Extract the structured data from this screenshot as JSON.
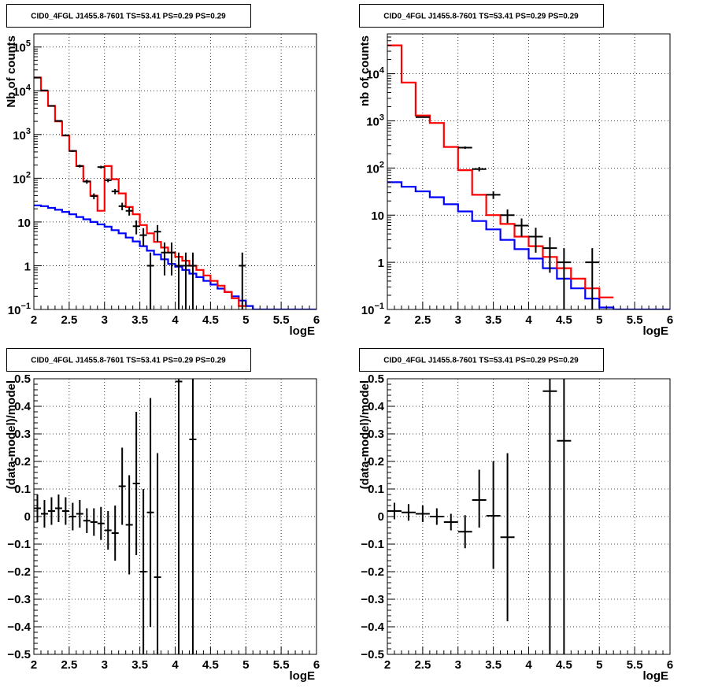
{
  "chart_data": [
    {
      "type": "line",
      "title": "CID0_4FGL J1455.8-7601 TS=53.41 PS=0.29 PS=0.29",
      "xlabel": "logE",
      "ylabel": "Nb of counts",
      "ylog": true,
      "xlim": [
        2,
        6
      ],
      "ylim": [
        0.1,
        200000
      ],
      "xticks": [
        "2",
        "2.5",
        "3",
        "3.5",
        "4",
        "4.5",
        "5",
        "5.5",
        "6"
      ],
      "yticks": [
        {
          "value": 0.1,
          "base": "10",
          "exp": "−1"
        },
        {
          "value": 1,
          "base": "1",
          "exp": ""
        },
        {
          "value": 10,
          "base": "10",
          "exp": ""
        },
        {
          "value": 100,
          "base": "10",
          "exp": "2"
        },
        {
          "value": 1000,
          "base": "10",
          "exp": "3"
        },
        {
          "value": 10000,
          "base": "10",
          "exp": "4"
        },
        {
          "value": 100000,
          "base": "10",
          "exp": "5"
        }
      ],
      "grid": true,
      "series": [
        {
          "color": "#0000ff",
          "style": "step",
          "edges": [
            2.0,
            2.1,
            2.2,
            2.3,
            2.4,
            2.5,
            2.6,
            2.7,
            2.8,
            2.9,
            3.0,
            3.1,
            3.2,
            3.3,
            3.4,
            3.5,
            3.6,
            3.7,
            3.8,
            3.9,
            4.0,
            4.1,
            4.2,
            4.3,
            4.4,
            4.5,
            4.6,
            4.7,
            4.8,
            4.9,
            5.0,
            5.1,
            5.2,
            5.3,
            5.4,
            5.5,
            5.6,
            5.7,
            5.8,
            5.9,
            6.0
          ],
          "values": [
            24,
            23,
            21,
            19,
            17,
            15,
            13,
            11.5,
            10,
            8.8,
            7.8,
            6.5,
            5.5,
            4.4,
            3.6,
            2.8,
            2.2,
            1.8,
            1.4,
            1.1,
            0.95,
            0.8,
            0.66,
            0.55,
            0.45,
            0.37,
            0.3,
            0.25,
            0.2,
            0.16,
            0.12,
            0.1,
            0.1,
            0.1,
            0.1,
            0.1,
            0.1,
            0.1,
            0.1,
            0.1
          ]
        },
        {
          "color": "#ff0000",
          "style": "step",
          "edges": [
            2.0,
            2.1,
            2.2,
            2.3,
            2.4,
            2.5,
            2.6,
            2.7,
            2.8,
            2.9,
            3.0,
            3.1,
            3.2,
            3.3,
            3.4,
            3.5,
            3.6,
            3.7,
            3.8,
            3.9,
            4.0,
            4.1,
            4.2,
            4.3,
            4.4,
            4.5,
            4.6,
            4.7,
            4.8,
            4.9,
            5.0
          ],
          "values": [
            20000,
            10000,
            4500,
            2000,
            950,
            420,
            190,
            85,
            40,
            18,
            190,
            95,
            45,
            22,
            15,
            8.5,
            5.5,
            3.5,
            2.6,
            2.0,
            1.6,
            1.3,
            1.0,
            0.8,
            0.6,
            0.45,
            0.35,
            0.25,
            0.18,
            0.12
          ]
        },
        {
          "color": "#000000",
          "style": "points",
          "points": [
            {
              "x": 2.05,
              "xerr": 0.05,
              "y": 20000,
              "lo": 19800,
              "hi": 20200
            },
            {
              "x": 2.15,
              "xerr": 0.05,
              "y": 10200,
              "lo": 10100,
              "hi": 10300
            },
            {
              "x": 2.25,
              "xerr": 0.05,
              "y": 4500,
              "lo": 4430,
              "hi": 4570
            },
            {
              "x": 2.35,
              "xerr": 0.05,
              "y": 2050,
              "lo": 2000,
              "hi": 2100
            },
            {
              "x": 2.45,
              "xerr": 0.05,
              "y": 960,
              "lo": 930,
              "hi": 990
            },
            {
              "x": 2.55,
              "xerr": 0.05,
              "y": 420,
              "lo": 400,
              "hi": 440
            },
            {
              "x": 2.65,
              "xerr": 0.05,
              "y": 190,
              "lo": 176,
              "hi": 204
            },
            {
              "x": 2.75,
              "xerr": 0.05,
              "y": 84,
              "lo": 75,
              "hi": 93
            },
            {
              "x": 2.85,
              "xerr": 0.05,
              "y": 39,
              "lo": 33,
              "hi": 45
            },
            {
              "x": 2.95,
              "xerr": 0.05,
              "y": 180,
              "lo": 167,
              "hi": 193
            },
            {
              "x": 3.05,
              "xerr": 0.05,
              "y": 90,
              "lo": 81,
              "hi": 99
            },
            {
              "x": 3.15,
              "xerr": 0.05,
              "y": 50,
              "lo": 43,
              "hi": 57
            },
            {
              "x": 3.25,
              "xerr": 0.05,
              "y": 23,
              "lo": 18.5,
              "hi": 27.5
            },
            {
              "x": 3.35,
              "xerr": 0.05,
              "y": 18,
              "lo": 14,
              "hi": 22
            },
            {
              "x": 3.45,
              "xerr": 0.05,
              "y": 8,
              "lo": 5.2,
              "hi": 10.8
            },
            {
              "x": 3.55,
              "xerr": 0.05,
              "y": 5,
              "lo": 2.8,
              "hi": 7.2
            },
            {
              "x": 3.65,
              "xerr": 0.05,
              "y": 1,
              "lo": 0.1,
              "hi": 2
            },
            {
              "x": 3.75,
              "xerr": 0.05,
              "y": 6,
              "lo": 3.5,
              "hi": 8.5
            },
            {
              "x": 3.85,
              "xerr": 0.05,
              "y": 2,
              "lo": 0.6,
              "hi": 3.4
            },
            {
              "x": 3.95,
              "xerr": 0.05,
              "y": 2,
              "lo": 0.6,
              "hi": 3.4
            },
            {
              "x": 4.05,
              "xerr": 0.05,
              "y": 1,
              "lo": 0.1,
              "hi": 2
            },
            {
              "x": 4.15,
              "xerr": 0.05,
              "y": 1,
              "lo": 0.1,
              "hi": 2
            },
            {
              "x": 4.25,
              "xerr": 0.05,
              "y": 1,
              "lo": 0.1,
              "hi": 2
            },
            {
              "x": 4.95,
              "xerr": 0.05,
              "y": 1,
              "lo": 0.1,
              "hi": 2
            }
          ]
        }
      ]
    },
    {
      "type": "line",
      "title": "CID0_4FGL J1455.8-7601 TS=53.41 PS=0.29 PS=0.29",
      "xlabel": "logE",
      "ylabel": "nb of counts",
      "ylog": true,
      "xlim": [
        2,
        6
      ],
      "ylim": [
        0.1,
        70000
      ],
      "xticks": [
        "2",
        "2.5",
        "3",
        "3.5",
        "4",
        "4.5",
        "5",
        "5.5",
        "6"
      ],
      "yticks": [
        {
          "value": 0.1,
          "base": "10",
          "exp": "−1"
        },
        {
          "value": 1,
          "base": "1",
          "exp": ""
        },
        {
          "value": 10,
          "base": "10",
          "exp": ""
        },
        {
          "value": 100,
          "base": "10",
          "exp": "2"
        },
        {
          "value": 1000,
          "base": "10",
          "exp": "3"
        },
        {
          "value": 10000,
          "base": "10",
          "exp": "4"
        }
      ],
      "grid": true,
      "series": [
        {
          "color": "#0000ff",
          "style": "step",
          "edges": [
            2.0,
            2.2,
            2.4,
            2.6,
            2.8,
            3.0,
            3.2,
            3.4,
            3.6,
            3.8,
            4.0,
            4.2,
            4.4,
            4.6,
            4.8,
            5.0,
            5.2,
            5.4,
            5.6,
            5.8,
            6.0
          ],
          "values": [
            50,
            40,
            32,
            24,
            17,
            12,
            7.5,
            5,
            3,
            1.9,
            1.2,
            0.75,
            0.45,
            0.28,
            0.17,
            0.11,
            0.1,
            0.1,
            0.1,
            0.1
          ]
        },
        {
          "color": "#ff0000",
          "style": "step",
          "edges": [
            2.0,
            2.2,
            2.4,
            2.6,
            2.8,
            3.0,
            3.2,
            3.4,
            3.6,
            3.8,
            4.0,
            4.2,
            4.4,
            4.6,
            4.8,
            5.0,
            5.2
          ],
          "values": [
            40000,
            6500,
            1300,
            900,
            280,
            90,
            27,
            10,
            6.5,
            3.5,
            2.2,
            1.3,
            0.75,
            0.45,
            0.28,
            0.18
          ]
        },
        {
          "color": "#000000",
          "style": "points",
          "points": [
            {
              "x": 2.5,
              "xerr": 0.1,
              "y": 1200,
              "lo": 1170,
              "hi": 1230
            },
            {
              "x": 3.1,
              "xerr": 0.1,
              "y": 270,
              "lo": 254,
              "hi": 286
            },
            {
              "x": 3.3,
              "xerr": 0.1,
              "y": 95,
              "lo": 85,
              "hi": 105
            },
            {
              "x": 3.5,
              "xerr": 0.1,
              "y": 27,
              "lo": 22,
              "hi": 32
            },
            {
              "x": 3.7,
              "xerr": 0.1,
              "y": 10,
              "lo": 6.8,
              "hi": 13.2
            },
            {
              "x": 3.9,
              "xerr": 0.1,
              "y": 6,
              "lo": 3.5,
              "hi": 8.5
            },
            {
              "x": 4.1,
              "xerr": 0.1,
              "y": 3.5,
              "lo": 1.6,
              "hi": 5.4
            },
            {
              "x": 4.3,
              "xerr": 0.1,
              "y": 2,
              "lo": 0.6,
              "hi": 3.4
            },
            {
              "x": 4.5,
              "xerr": 0.1,
              "y": 1,
              "lo": 0.1,
              "hi": 2
            },
            {
              "x": 4.9,
              "xerr": 0.1,
              "y": 1,
              "lo": 0.1,
              "hi": 2
            }
          ]
        }
      ]
    },
    {
      "type": "scatter",
      "title": "CID0_4FGL J1455.8-7601 TS=53.41 PS=0.29 PS=0.29",
      "xlabel": "logE",
      "ylabel": "(data-model)/model",
      "ylog": false,
      "xlim": [
        2,
        6
      ],
      "ylim": [
        -0.5,
        0.5
      ],
      "xticks": [
        "2",
        "2.5",
        "3",
        "3.5",
        "4",
        "4.5",
        "5",
        "5.5",
        "6"
      ],
      "yticks": [
        {
          "value": -0.5,
          "label": "−0.5"
        },
        {
          "value": -0.4,
          "label": "−0.4"
        },
        {
          "value": -0.3,
          "label": "−0.3"
        },
        {
          "value": -0.2,
          "label": "−0.2"
        },
        {
          "value": -0.1,
          "label": "−0.1"
        },
        {
          "value": 0,
          "label": "0"
        },
        {
          "value": 0.1,
          "label": "0.1"
        },
        {
          "value": 0.2,
          "label": "0.2"
        },
        {
          "value": 0.3,
          "label": "0.3"
        },
        {
          "value": 0.4,
          "label": "0.4"
        },
        {
          "value": 0.5,
          "label": "0.5"
        }
      ],
      "grid": true,
      "series": [
        {
          "color": "#000000",
          "style": "points",
          "points": [
            {
              "x": 2.05,
              "xerr": 0.05,
              "y": 0.03,
              "lo": -0.02,
              "hi": 0.08
            },
            {
              "x": 2.15,
              "xerr": 0.05,
              "y": 0.01,
              "lo": -0.04,
              "hi": 0.06
            },
            {
              "x": 2.25,
              "xerr": 0.05,
              "y": 0.02,
              "lo": -0.03,
              "hi": 0.07
            },
            {
              "x": 2.35,
              "xerr": 0.05,
              "y": 0.03,
              "lo": -0.02,
              "hi": 0.08
            },
            {
              "x": 2.45,
              "xerr": 0.05,
              "y": 0.02,
              "lo": -0.03,
              "hi": 0.07
            },
            {
              "x": 2.55,
              "xerr": 0.05,
              "y": 0.0,
              "lo": -0.05,
              "hi": 0.05
            },
            {
              "x": 2.65,
              "xerr": 0.05,
              "y": 0.01,
              "lo": -0.04,
              "hi": 0.06
            },
            {
              "x": 2.75,
              "xerr": 0.05,
              "y": -0.015,
              "lo": -0.06,
              "hi": 0.03
            },
            {
              "x": 2.85,
              "xerr": 0.05,
              "y": -0.02,
              "lo": -0.07,
              "hi": 0.03
            },
            {
              "x": 2.95,
              "xerr": 0.05,
              "y": -0.025,
              "lo": -0.085,
              "hi": 0.035
            },
            {
              "x": 3.05,
              "xerr": 0.05,
              "y": -0.05,
              "lo": -0.12,
              "hi": 0.02
            },
            {
              "x": 3.15,
              "xerr": 0.05,
              "y": -0.06,
              "lo": -0.16,
              "hi": 0.04
            },
            {
              "x": 3.25,
              "xerr": 0.05,
              "y": 0.11,
              "lo": -0.03,
              "hi": 0.25
            },
            {
              "x": 3.35,
              "xerr": 0.05,
              "y": -0.03,
              "lo": -0.21,
              "hi": 0.15
            },
            {
              "x": 3.45,
              "xerr": 0.05,
              "y": 0.12,
              "lo": -0.14,
              "hi": 0.38
            },
            {
              "x": 3.55,
              "xerr": 0.05,
              "y": -0.2,
              "lo": -0.5,
              "hi": 0.1
            },
            {
              "x": 3.65,
              "xerr": 0.05,
              "y": 0.015,
              "lo": -0.4,
              "hi": 0.43
            },
            {
              "x": 3.75,
              "xerr": 0.05,
              "y": -0.22,
              "lo": -0.5,
              "hi": 0.23
            },
            {
              "x": 4.05,
              "xerr": 0.05,
              "y": 0.49,
              "lo": -0.5,
              "hi": 0.5
            },
            {
              "x": 4.25,
              "xerr": 0.05,
              "y": 0.28,
              "lo": -0.5,
              "hi": 0.5
            }
          ]
        }
      ]
    },
    {
      "type": "scatter",
      "title": "CID0_4FGL J1455.8-7601 TS=53.41 PS=0.29 PS=0.29",
      "xlabel": "logE",
      "ylabel": "(data-model)/model",
      "ylog": false,
      "xlim": [
        2,
        6
      ],
      "ylim": [
        -0.5,
        0.5
      ],
      "xticks": [
        "2",
        "2.5",
        "3",
        "3.5",
        "4",
        "4.5",
        "5",
        "5.5",
        "6"
      ],
      "yticks": [
        {
          "value": -0.5,
          "label": "−0.5"
        },
        {
          "value": -0.4,
          "label": "−0.4"
        },
        {
          "value": -0.3,
          "label": "−0.3"
        },
        {
          "value": -0.2,
          "label": "−0.2"
        },
        {
          "value": -0.1,
          "label": "−0.1"
        },
        {
          "value": 0,
          "label": "0"
        },
        {
          "value": 0.1,
          "label": "0.1"
        },
        {
          "value": 0.2,
          "label": "0.2"
        },
        {
          "value": 0.3,
          "label": "0.3"
        },
        {
          "value": 0.4,
          "label": "0.4"
        },
        {
          "value": 0.5,
          "label": "0.5"
        }
      ],
      "grid": true,
      "series": [
        {
          "color": "#000000",
          "style": "points",
          "points": [
            {
              "x": 2.1,
              "xerr": 0.1,
              "y": 0.02,
              "lo": -0.01,
              "hi": 0.05
            },
            {
              "x": 2.3,
              "xerr": 0.1,
              "y": 0.015,
              "lo": -0.015,
              "hi": 0.045
            },
            {
              "x": 2.5,
              "xerr": 0.1,
              "y": 0.01,
              "lo": -0.02,
              "hi": 0.04
            },
            {
              "x": 2.7,
              "xerr": 0.1,
              "y": 0.0,
              "lo": -0.03,
              "hi": 0.03
            },
            {
              "x": 2.9,
              "xerr": 0.1,
              "y": -0.02,
              "lo": -0.05,
              "hi": 0.01
            },
            {
              "x": 3.1,
              "xerr": 0.1,
              "y": -0.055,
              "lo": -0.115,
              "hi": 0.005
            },
            {
              "x": 3.3,
              "xerr": 0.1,
              "y": 0.06,
              "lo": -0.04,
              "hi": 0.17
            },
            {
              "x": 3.5,
              "xerr": 0.1,
              "y": 0.003,
              "lo": -0.19,
              "hi": 0.2
            },
            {
              "x": 3.7,
              "xerr": 0.1,
              "y": -0.075,
              "lo": -0.38,
              "hi": 0.23
            },
            {
              "x": 4.3,
              "xerr": 0.1,
              "y": 0.455,
              "lo": -0.5,
              "hi": 0.5
            },
            {
              "x": 4.5,
              "xerr": 0.1,
              "y": 0.275,
              "lo": -0.5,
              "hi": 0.5
            }
          ]
        }
      ]
    }
  ]
}
